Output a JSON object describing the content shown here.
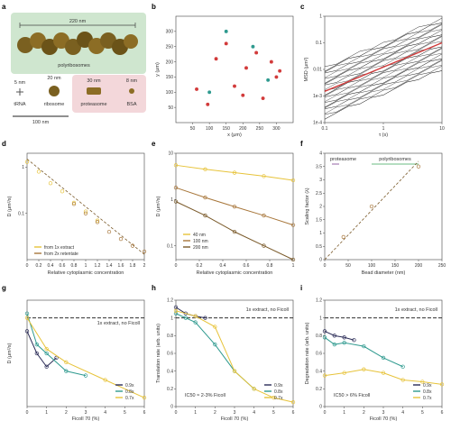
{
  "colors": {
    "gold": "#e7c33a",
    "bronze": "#a8773b",
    "darkbrown": "#7a5a2a",
    "teal": "#2f9a8f",
    "navy": "#2b2c57",
    "purple": "#7b3f8f",
    "green": "#3aa55a",
    "red": "#d23b3b",
    "dashed": "#111111",
    "panel_a_green": "#cfe6cf",
    "panel_a_pink": "#f3d7da"
  },
  "panels": {
    "a": {
      "letter": "a",
      "scale_top": "220 nm",
      "polysomes": "polyribosomes",
      "sizes": [
        "5 nm",
        "20 nm",
        "30 nm",
        "8 nm"
      ],
      "labels": [
        "tRNA",
        "ribosome",
        "proteasome",
        "BSA"
      ],
      "scale_bottom": "100 nm"
    },
    "b": {
      "letter": "b",
      "xlabel": "x (μm)",
      "ylabel": "y (μm)"
    },
    "c": {
      "letter": "c",
      "xlabel": "τ (s)",
      "ylabel": "MSD (μm²)"
    },
    "d": {
      "letter": "d",
      "xlabel": "Relative cytoplasmic concentration",
      "ylabel": "D (μm²/s)"
    },
    "e": {
      "letter": "e",
      "xlabel": "Relative cytoplasmic concentration",
      "ylabel": "D (μm²/s)"
    },
    "f": {
      "letter": "f",
      "xlabel": "Bead diameter (nm)",
      "ylabel": "Scaling factor (λ)",
      "proteasome": "proteasome",
      "polyribosomes": "polyribosomes"
    },
    "g": {
      "letter": "g",
      "xlabel": "Ficoll 70 (%)",
      "ylabel": "D (μm²/s)",
      "note": "1x extract, no Ficoll"
    },
    "h": {
      "letter": "h",
      "xlabel": "Ficoll 70 (%)",
      "ylabel": "Translation rate (arb. units)",
      "note": "1x extract, no Ficoll",
      "ic50": "IC50 ≈ 2-3% Ficoll"
    },
    "i": {
      "letter": "i",
      "xlabel": "Ficoll 70 (%)",
      "ylabel": "Degradation rate (arb. units)",
      "note": "1x extract, no Ficoll",
      "ic50": "IC50 > 6% Ficoll"
    }
  },
  "chart_data": [
    {
      "panel": "b",
      "type": "scatter",
      "xlabel": "x (μm)",
      "ylabel": "y (μm)",
      "xlim": [
        0,
        350
      ],
      "ylim": [
        0,
        350
      ],
      "xticks": [
        50,
        100,
        150,
        200,
        250,
        300
      ],
      "yticks": [
        50,
        100,
        150,
        200,
        250,
        300
      ],
      "series": [
        {
          "color": "red",
          "x": [
            62,
            210,
            285,
            300,
            260,
            175,
            120,
            95,
            240,
            310,
            150,
            200
          ],
          "y": [
            110,
            180,
            200,
            150,
            80,
            120,
            210,
            60,
            230,
            170,
            260,
            90
          ]
        },
        {
          "color": "teal",
          "x": [
            150,
            275,
            100,
            230
          ],
          "y": [
            300,
            140,
            100,
            250
          ]
        }
      ]
    },
    {
      "panel": "c",
      "type": "line",
      "xlabel": "τ (s)",
      "ylabel": "MSD (μm²)",
      "xscale": "log",
      "yscale": "log",
      "xlim": [
        0.1,
        10
      ],
      "ylim": [
        0.0001,
        1
      ],
      "xticks": [
        0.1,
        1,
        10
      ],
      "yticks": [
        0.0001,
        0.001,
        0.01,
        0.1,
        1
      ],
      "mean_line": {
        "color": "red",
        "x": [
          0.1,
          10
        ],
        "y": [
          0.0015,
          0.1
        ]
      }
    },
    {
      "panel": "d",
      "type": "scatter",
      "xlabel": "Relative cytoplasmic concentration",
      "ylabel": "D (μm²/s)",
      "yscale": "log",
      "xlim": [
        0,
        2.0
      ],
      "ylim": [
        0.01,
        2
      ],
      "xticks": [
        0,
        0.2,
        0.4,
        0.6,
        0.8,
        1.0,
        1.2,
        1.4,
        1.6,
        1.8,
        2.0
      ],
      "yticks": [
        0.1,
        1
      ],
      "series": [
        {
          "name": "from 1x extract",
          "x": [
            0,
            0.2,
            0.4,
            0.6,
            0.8,
            1.0,
            1.2
          ],
          "y": [
            1.3,
            0.8,
            0.45,
            0.3,
            0.17,
            0.11,
            0.07
          ]
        },
        {
          "name": "from 2x retentate",
          "x": [
            0.8,
            1.0,
            1.2,
            1.4,
            1.6,
            1.8,
            2.0
          ],
          "y": [
            0.16,
            0.1,
            0.065,
            0.04,
            0.028,
            0.02,
            0.015
          ]
        }
      ],
      "fit": {
        "x": [
          0,
          2.0
        ],
        "y": [
          1.5,
          0.013
        ]
      }
    },
    {
      "panel": "e",
      "type": "scatter",
      "xlabel": "Relative cytoplasmic concentration",
      "ylabel": "D (μm²/s)",
      "yscale": "log",
      "xlim": [
        0,
        1.0
      ],
      "ylim": [
        0.05,
        10
      ],
      "xticks": [
        0,
        0.2,
        0.4,
        0.6,
        0.8,
        1.0
      ],
      "yticks": [
        0.1,
        1,
        10
      ],
      "series": [
        {
          "name": "40 nm",
          "x": [
            0,
            0.25,
            0.5,
            0.75,
            1.0
          ],
          "y": [
            5.5,
            4.5,
            3.8,
            3.2,
            2.6
          ]
        },
        {
          "name": "100 nm",
          "x": [
            0,
            0.25,
            0.5,
            0.75,
            1.0
          ],
          "y": [
            1.8,
            1.1,
            0.7,
            0.45,
            0.28
          ]
        },
        {
          "name": "200 nm",
          "x": [
            0,
            0.25,
            0.5,
            0.75,
            1.0
          ],
          "y": [
            0.9,
            0.45,
            0.2,
            0.1,
            0.05
          ]
        }
      ]
    },
    {
      "panel": "f",
      "type": "scatter",
      "xlabel": "Bead diameter (nm)",
      "ylabel": "Scaling factor (λ)",
      "xlim": [
        0,
        250
      ],
      "ylim": [
        0,
        4.0
      ],
      "xticks": [
        0,
        50,
        100,
        150,
        200,
        250
      ],
      "yticks": [
        0,
        0.5,
        1.0,
        1.5,
        2.0,
        2.5,
        3.0,
        3.5,
        4.0
      ],
      "series": [
        {
          "name": "beads",
          "x": [
            40,
            100,
            200
          ],
          "y": [
            0.85,
            2.0,
            3.5
          ]
        }
      ],
      "fit": {
        "x": [
          0,
          200
        ],
        "y": [
          0,
          3.7
        ]
      }
    },
    {
      "panel": "g",
      "type": "line",
      "xlabel": "Ficoll 70 (%)",
      "ylabel": "D (μm²/s)",
      "xlim": [
        0,
        6
      ],
      "ylim": [
        0,
        1.2
      ],
      "xticks": [
        0,
        1,
        2,
        3,
        4,
        5,
        6
      ],
      "series": [
        {
          "name": "0.9x",
          "x": [
            0,
            0.5,
            1,
            1.5
          ],
          "y": [
            0.85,
            0.6,
            0.45,
            0.55
          ]
        },
        {
          "name": "0.8x",
          "x": [
            0,
            0.5,
            1,
            2,
            3
          ],
          "y": [
            1.05,
            0.7,
            0.6,
            0.4,
            0.35
          ]
        },
        {
          "name": "0.7x",
          "x": [
            0,
            1,
            2,
            4,
            6
          ],
          "y": [
            1.0,
            0.65,
            0.5,
            0.3,
            0.1
          ]
        }
      ]
    },
    {
      "panel": "h",
      "type": "line",
      "xlabel": "Ficoll 70 (%)",
      "ylabel": "Translation rate (arb. units)",
      "xlim": [
        0,
        6
      ],
      "ylim": [
        0,
        1.2
      ],
      "xticks": [
        0,
        1,
        2,
        3,
        4,
        5,
        6
      ],
      "yticks": [
        0,
        0.2,
        0.4,
        0.6,
        0.8,
        1.0,
        1.2
      ],
      "series": [
        {
          "name": "0.9x",
          "x": [
            0,
            0.5,
            1,
            1.5
          ],
          "y": [
            1.12,
            1.05,
            1.02,
            1.0
          ]
        },
        {
          "name": "0.8x",
          "x": [
            0,
            0.5,
            1,
            2,
            3,
            4
          ],
          "y": [
            1.05,
            1.0,
            0.95,
            0.7,
            0.4,
            0.2
          ]
        },
        {
          "name": "0.7x",
          "x": [
            0,
            1,
            2,
            3,
            4,
            5,
            6
          ],
          "y": [
            1.08,
            1.02,
            0.9,
            0.4,
            0.2,
            0.1,
            0.05
          ]
        }
      ]
    },
    {
      "panel": "i",
      "type": "line",
      "xlabel": "Ficoll 70 (%)",
      "ylabel": "Degradation rate (arb. units)",
      "xlim": [
        0,
        6
      ],
      "ylim": [
        0,
        1.2
      ],
      "xticks": [
        0,
        1,
        2,
        3,
        4,
        5,
        6
      ],
      "yticks": [
        0,
        0.2,
        0.4,
        0.6,
        0.8,
        1.0,
        1.2
      ],
      "series": [
        {
          "name": "0.9x",
          "x": [
            0,
            0.5,
            1,
            1.5
          ],
          "y": [
            0.85,
            0.8,
            0.78,
            0.75
          ]
        },
        {
          "name": "0.8x",
          "x": [
            0,
            0.5,
            1,
            2,
            3,
            4
          ],
          "y": [
            0.78,
            0.7,
            0.72,
            0.68,
            0.55,
            0.45
          ]
        },
        {
          "name": "0.7x",
          "x": [
            0,
            1,
            2,
            3,
            4,
            5,
            6
          ],
          "y": [
            0.35,
            0.38,
            0.42,
            0.38,
            0.3,
            0.28,
            0.25
          ]
        }
      ]
    }
  ]
}
